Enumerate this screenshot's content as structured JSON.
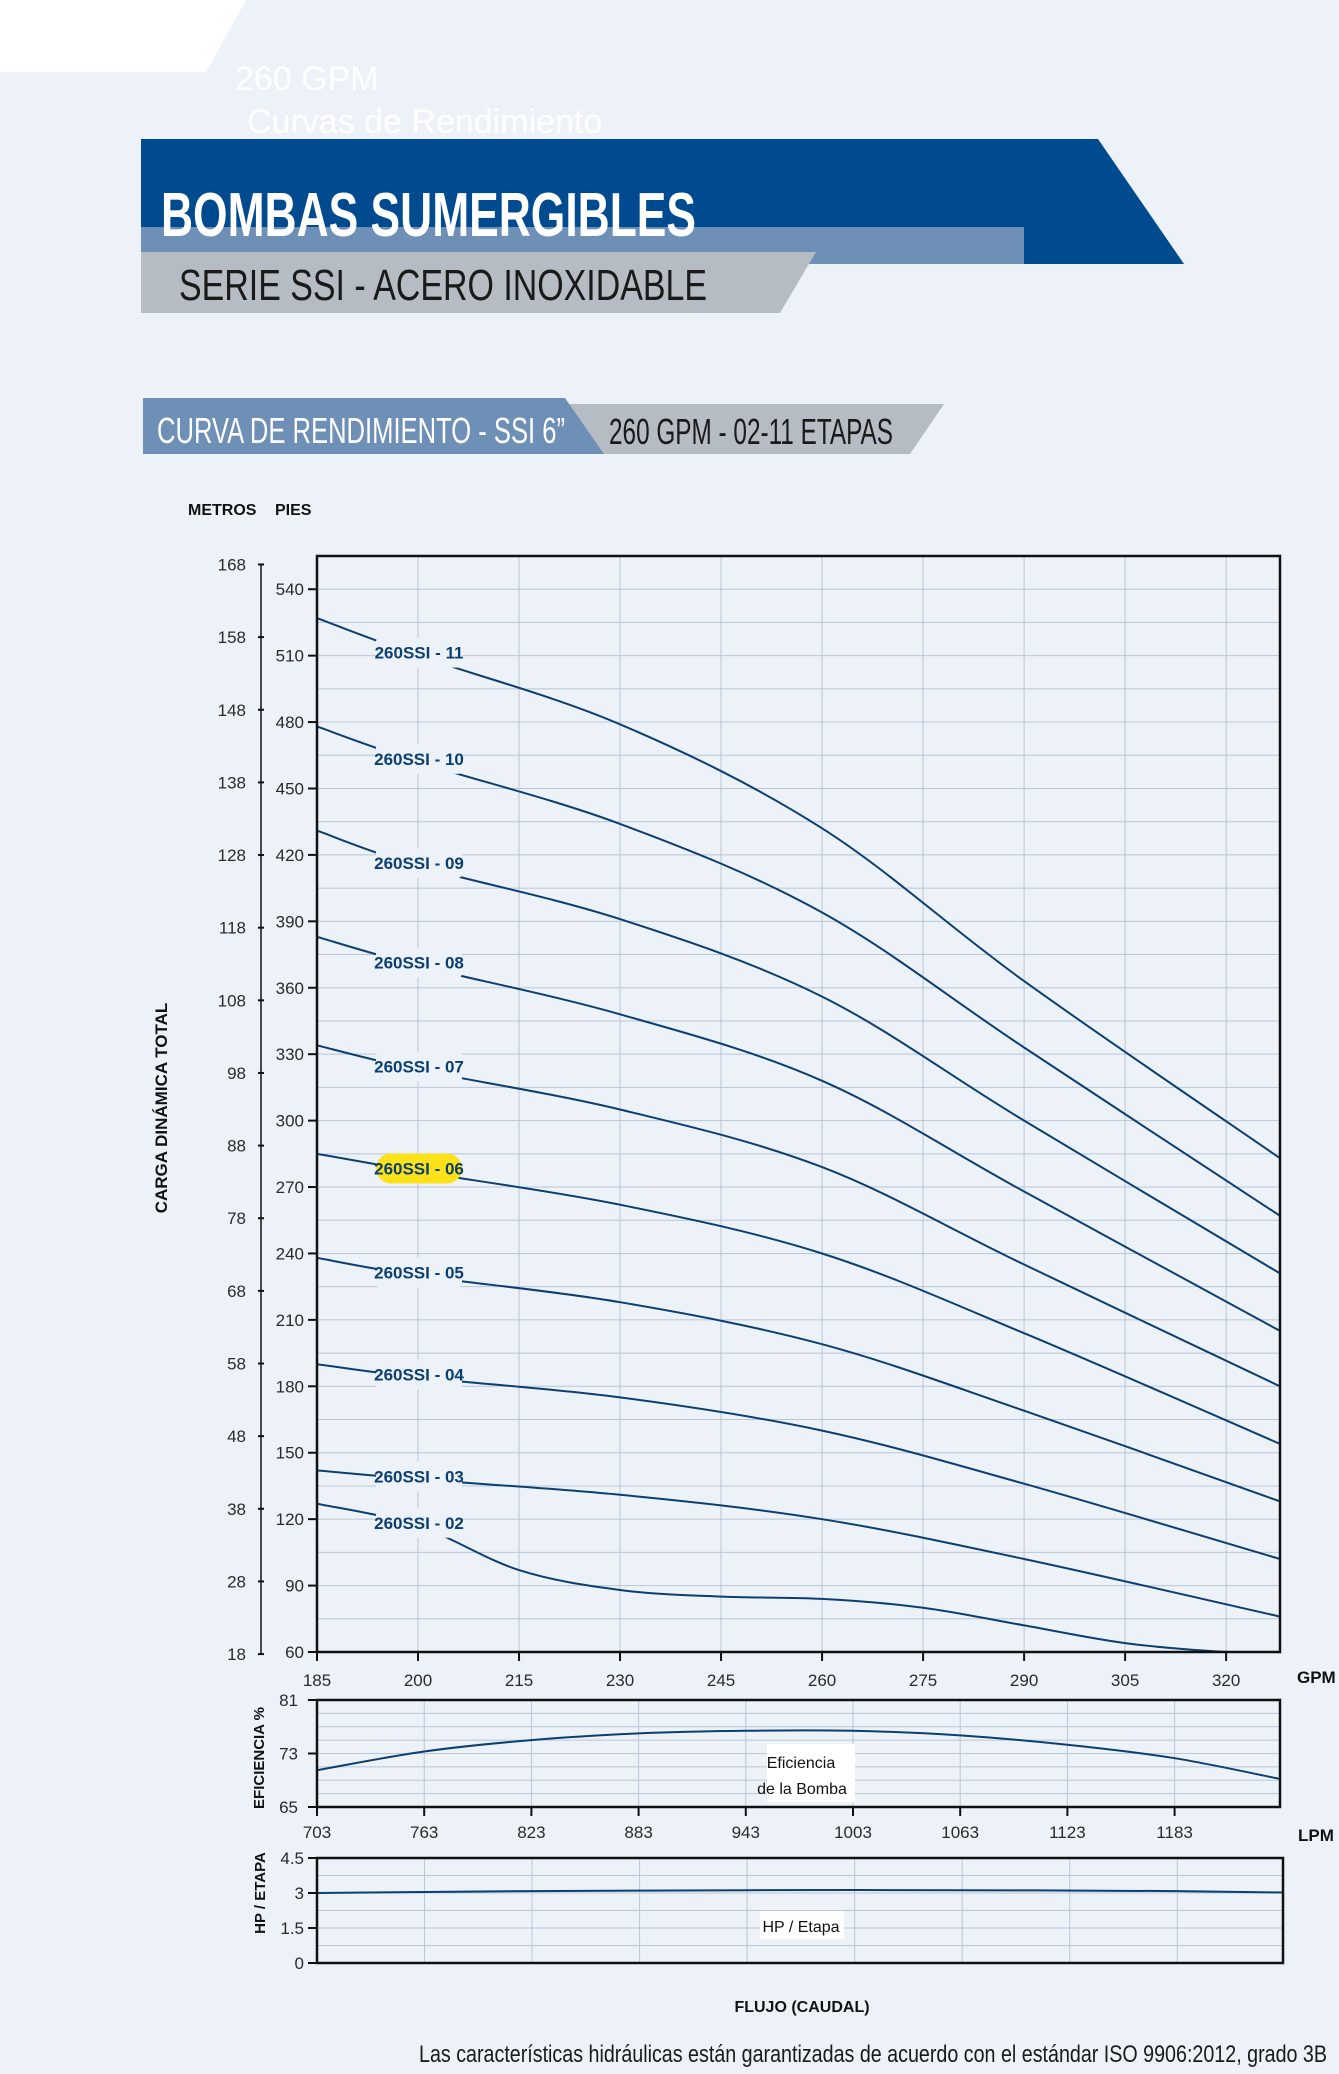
{
  "header": {
    "top_line1": "260 GPM",
    "top_line2": "Curvas de Rendimiento",
    "title": "BOMBAS SUMERGIBLES",
    "subtitle": "SERIE SSI - ACERO INOXIDABLE"
  },
  "section": {
    "left_label": "CURVA DE RENDIMIENTO - SSI 6”",
    "right_label": "260 GPM - 02-11 ETAPAS"
  },
  "footer": {
    "note": "Las características hidráulicas están garantizadas de acuerdo con el estándar ISO 9906:2012, grado 3B"
  },
  "colors": {
    "background": "#edf2f9",
    "navy": "#004a8f",
    "steel": "#6e90b6",
    "gray_band": "#b6bcc4",
    "curve": "#0b3f72",
    "highlight": "#fde21a"
  },
  "chart_data": [
    {
      "type": "line",
      "id": "head",
      "title": "",
      "xlabel": "GPM",
      "ylabel": "CARGA DINÁMICA TOTAL",
      "y_unit_left": "METROS",
      "y_unit_right": "PIES",
      "xlim": [
        185,
        328
      ],
      "ylim": [
        60,
        555
      ],
      "x_ticks": [
        "185",
        "200",
        "215",
        "230",
        "245",
        "260",
        "275",
        "290",
        "305",
        "320"
      ],
      "y_ticks_pies": [
        "60",
        "90",
        "120",
        "150",
        "180",
        "210",
        "240",
        "270",
        "300",
        "330",
        "360",
        "390",
        "420",
        "450",
        "480",
        "510",
        "540"
      ],
      "y_ticks_metros": [
        "18",
        "28",
        "38",
        "48",
        "58",
        "68",
        "78",
        "88",
        "98",
        "108",
        "118",
        "128",
        "138",
        "148",
        "158",
        "168"
      ],
      "grid": true,
      "highlighted_series": "260SSI - 06",
      "series": [
        {
          "name": "260SSI - 11",
          "x": [
            185,
            200,
            230,
            260,
            290,
            328
          ],
          "y": [
            527,
            510,
            479,
            432,
            363,
            283
          ]
        },
        {
          "name": "260SSI - 10",
          "x": [
            185,
            200,
            230,
            260,
            290,
            328
          ],
          "y": [
            478,
            462,
            434,
            394,
            333,
            257
          ]
        },
        {
          "name": "260SSI - 09",
          "x": [
            185,
            200,
            230,
            260,
            290,
            328
          ],
          "y": [
            431,
            415,
            391,
            356,
            300,
            231
          ]
        },
        {
          "name": "260SSI - 08",
          "x": [
            185,
            200,
            230,
            260,
            290,
            328
          ],
          "y": [
            383,
            370,
            348,
            318,
            268,
            205
          ]
        },
        {
          "name": "260SSI - 07",
          "x": [
            185,
            200,
            230,
            260,
            290,
            328
          ],
          "y": [
            334,
            323,
            305,
            279,
            235,
            180
          ]
        },
        {
          "name": "260SSI - 06",
          "x": [
            185,
            200,
            230,
            260,
            290,
            328
          ],
          "y": [
            285,
            277,
            262,
            240,
            204,
            154
          ]
        },
        {
          "name": "260SSI - 05",
          "x": [
            185,
            200,
            230,
            260,
            290,
            328
          ],
          "y": [
            238,
            230,
            218,
            199,
            169,
            128
          ]
        },
        {
          "name": "260SSI - 04",
          "x": [
            185,
            200,
            230,
            260,
            290,
            328
          ],
          "y": [
            190,
            184,
            175,
            160,
            136,
            102
          ]
        },
        {
          "name": "260SSI - 03",
          "x": [
            185,
            200,
            230,
            260,
            290,
            328
          ],
          "y": [
            142,
            138,
            131,
            120,
            102,
            76
          ]
        },
        {
          "name": "260SSI - 02",
          "x": [
            185,
            200,
            215,
            230,
            245,
            260,
            275,
            290,
            305,
            320,
            328
          ],
          "y": [
            127,
            117,
            97,
            88,
            85,
            84,
            80,
            72,
            64,
            60,
            60
          ]
        }
      ]
    },
    {
      "type": "line",
      "id": "efficiency",
      "ylabel": "EFICIENCIA %",
      "xlabel": "LPM",
      "annotation_line1": "Eficiencia",
      "annotation_line2": "de la Bomba",
      "ylim": [
        65,
        81
      ],
      "y_ticks": [
        "65",
        "73",
        "81"
      ],
      "x_ticks": [
        "703",
        "763",
        "823",
        "883",
        "943",
        "1003",
        "1063",
        "1123",
        "1183"
      ],
      "grid": true,
      "series": [
        {
          "name": "Eficiencia de la Bomba",
          "x": [
            703,
            763,
            823,
            883,
            943,
            1003,
            1063,
            1123,
            1183,
            1242
          ],
          "y": [
            70.5,
            73.3,
            75.0,
            76.0,
            76.4,
            76.4,
            75.7,
            74.3,
            72.3,
            69.2
          ]
        }
      ]
    },
    {
      "type": "line",
      "id": "hp",
      "ylabel": "HP / ETAPA",
      "xlabel": "FLUJO (CAUDAL)",
      "annotation": "HP / Etapa",
      "ylim": [
        0,
        4.5
      ],
      "y_ticks": [
        "0",
        "1.5",
        "3",
        "4.5"
      ],
      "grid": true,
      "series": [
        {
          "name": "HP / Etapa",
          "x": [
            703,
            823,
            943,
            1063,
            1183,
            1242
          ],
          "y": [
            3.0,
            3.08,
            3.12,
            3.12,
            3.08,
            3.02
          ]
        }
      ]
    }
  ]
}
